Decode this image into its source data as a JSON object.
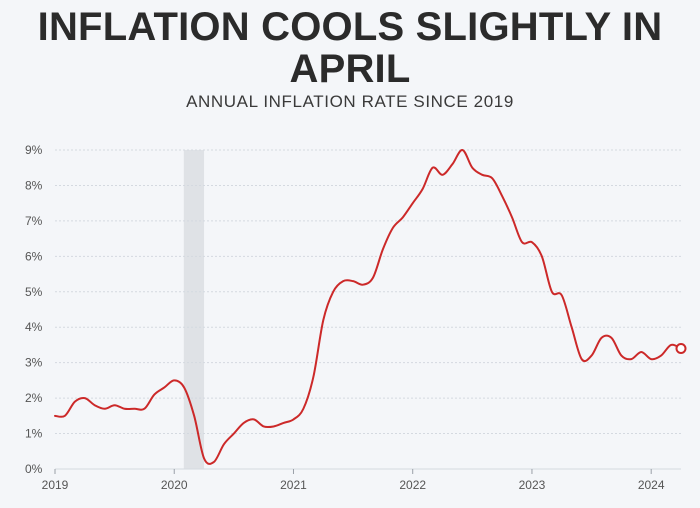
{
  "colors": {
    "line": "#cc2929",
    "grid": "#d4d9e0",
    "shade": "#dfe2e6",
    "background": "#f4f6f9"
  },
  "chart_data": {
    "type": "line",
    "title": "INFLATION COOLS SLIGHTLY IN APRIL",
    "subtitle": "ANNUAL INFLATION RATE SINCE 2019",
    "xlabel": "",
    "ylabel": "",
    "xlim": [
      2019,
      2024.25
    ],
    "ylim": [
      0,
      9
    ],
    "y_ticks": [
      {
        "value": 0,
        "label": "0%"
      },
      {
        "value": 1,
        "label": "1%"
      },
      {
        "value": 2,
        "label": "2%"
      },
      {
        "value": 3,
        "label": "3%"
      },
      {
        "value": 4,
        "label": "4%"
      },
      {
        "value": 5,
        "label": "5%"
      },
      {
        "value": 6,
        "label": "6%"
      },
      {
        "value": 7,
        "label": "7%"
      },
      {
        "value": 8,
        "label": "8%"
      },
      {
        "value": 9,
        "label": "9%"
      }
    ],
    "x_ticks": [
      {
        "value": 2019,
        "label": "2019"
      },
      {
        "value": 2020,
        "label": "2020"
      },
      {
        "value": 2021,
        "label": "2021"
      },
      {
        "value": 2022,
        "label": "2022"
      },
      {
        "value": 2023,
        "label": "2023"
      },
      {
        "value": 2024,
        "label": "2024"
      }
    ],
    "shaded_range": [
      2020.08,
      2020.25
    ],
    "series": [
      {
        "name": "Annual inflation rate",
        "x": [
          2019.0,
          2019.083,
          2019.167,
          2019.25,
          2019.333,
          2019.417,
          2019.5,
          2019.583,
          2019.667,
          2019.75,
          2019.833,
          2019.917,
          2020.0,
          2020.083,
          2020.167,
          2020.25,
          2020.333,
          2020.417,
          2020.5,
          2020.583,
          2020.667,
          2020.75,
          2020.833,
          2020.917,
          2021.0,
          2021.083,
          2021.167,
          2021.25,
          2021.333,
          2021.417,
          2021.5,
          2021.583,
          2021.667,
          2021.75,
          2021.833,
          2021.917,
          2022.0,
          2022.083,
          2022.167,
          2022.25,
          2022.333,
          2022.417,
          2022.5,
          2022.583,
          2022.667,
          2022.75,
          2022.833,
          2022.917,
          2023.0,
          2023.083,
          2023.167,
          2023.25,
          2023.333,
          2023.417,
          2023.5,
          2023.583,
          2023.667,
          2023.75,
          2023.833,
          2023.917,
          2024.0,
          2024.083,
          2024.167,
          2024.25
        ],
        "values": [
          1.5,
          1.5,
          1.9,
          2.0,
          1.8,
          1.7,
          1.8,
          1.7,
          1.7,
          1.7,
          2.1,
          2.3,
          2.5,
          2.3,
          1.5,
          0.3,
          0.2,
          0.7,
          1.0,
          1.3,
          1.4,
          1.2,
          1.2,
          1.3,
          1.4,
          1.7,
          2.6,
          4.2,
          5.0,
          5.3,
          5.3,
          5.2,
          5.4,
          6.2,
          6.8,
          7.1,
          7.5,
          7.9,
          8.5,
          8.3,
          8.6,
          9.0,
          8.5,
          8.3,
          8.2,
          7.7,
          7.1,
          6.4,
          6.4,
          6.0,
          5.0,
          4.9,
          4.0,
          3.1,
          3.2,
          3.7,
          3.7,
          3.2,
          3.1,
          3.3,
          3.1,
          3.2,
          3.5,
          3.4
        ],
        "end_marker": true
      }
    ]
  }
}
